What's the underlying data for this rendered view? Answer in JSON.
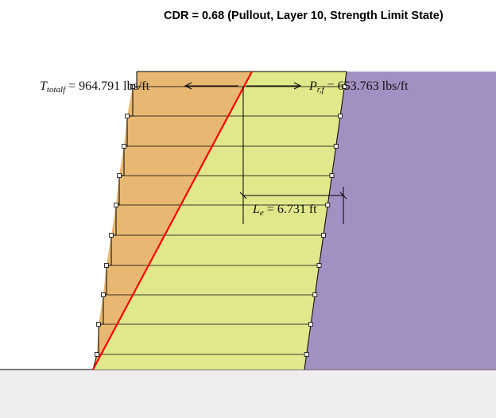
{
  "title": "CDR = 0.68 (Pullout, Layer 10, Strength Limit State)",
  "labels": {
    "t_total": {
      "symbol": "T",
      "subscript": "totalf",
      "equals": " = 964.791 lbs/ft"
    },
    "p_rf": {
      "symbol": "P",
      "subscript": "r,f",
      "equals": " = 653.763 lbs/ft"
    },
    "le": {
      "symbol": "L",
      "subscript": "e",
      "equals": " = 6.731 ft"
    }
  },
  "colors": {
    "wedge": "#e8b873",
    "reinforced_zone": "#e1e88c",
    "retained_soil": "#a390c3",
    "ground": "#efedf0",
    "failure_line": "#ff0000",
    "reinforcement": "#000000"
  },
  "layer_count": 10,
  "highlighted_layer": 10
}
